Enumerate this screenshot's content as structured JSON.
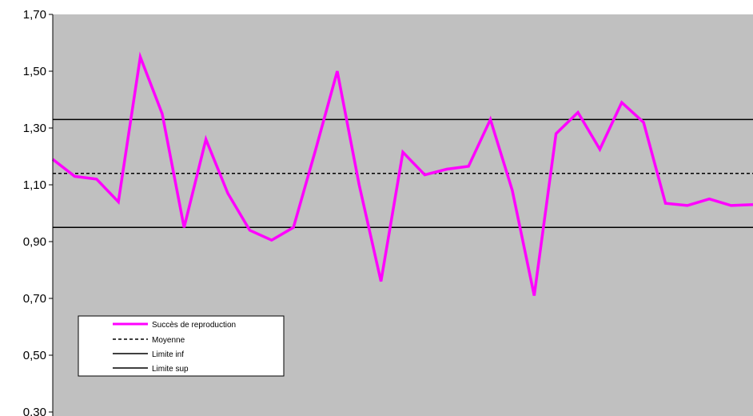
{
  "chart_data": {
    "type": "line",
    "title": "",
    "xlabel": "",
    "ylabel": "",
    "ylim": [
      0.3,
      1.7
    ],
    "y_ticks": [
      "1,70",
      "1,50",
      "1,30",
      "1,10",
      "0,90",
      "0,70",
      "0,50",
      "0,30"
    ],
    "y_tick_values": [
      1.7,
      1.5,
      1.3,
      1.1,
      0.9,
      0.7,
      0.5,
      0.3
    ],
    "plot_background": "#c0c0c0",
    "legend_position": "bottom-left",
    "series": [
      {
        "name": "Succès de reproduction",
        "color": "#ff00ff",
        "style": "solid",
        "values": [
          1.19,
          1.13,
          1.12,
          1.04,
          1.55,
          1.35,
          0.95,
          1.26,
          1.07,
          0.94,
          0.905,
          0.95,
          1.22,
          1.5,
          1.1,
          0.76,
          1.215,
          1.135,
          1.155,
          1.165,
          1.33,
          1.08,
          0.71,
          1.28,
          1.355,
          1.225,
          1.39,
          1.32,
          1.035,
          1.027,
          1.05,
          1.027,
          1.03
        ]
      },
      {
        "name": "Moyenne",
        "color": "#000000",
        "style": "dashed",
        "constant": 1.14
      },
      {
        "name": "Limite inf",
        "color": "#000000",
        "style": "solid",
        "constant": 0.95
      },
      {
        "name": "Limite sup",
        "color": "#000000",
        "style": "solid",
        "constant": 1.33
      }
    ]
  }
}
